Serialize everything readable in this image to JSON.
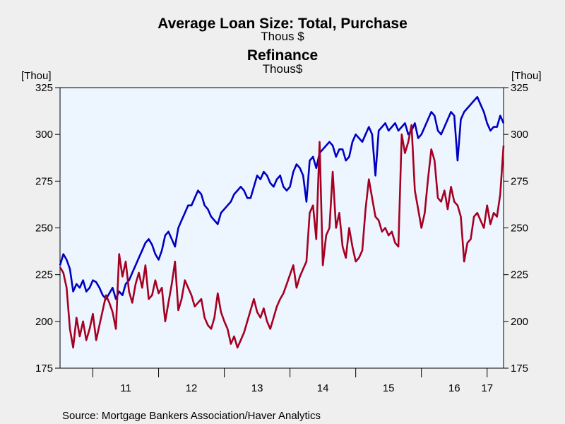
{
  "colors": {
    "purchase": "#0000c0",
    "refinance": "#a50021",
    "plot_bg": "#edf5ff",
    "page_bg": "#efefef"
  },
  "chart_data": {
    "type": "line",
    "title": "Average Loan Size: Total, Purchase",
    "title_unit": "Thous $",
    "title2": "Refinance",
    "title2_unit": "Thous$",
    "left_unit": "[Thou]",
    "right_unit": "[Thou]",
    "ylim": [
      175,
      325
    ],
    "yticks": [
      175,
      200,
      225,
      250,
      275,
      300,
      325
    ],
    "xlim": [
      2010.5,
      2017.25
    ],
    "xtick_labels": [
      {
        "label": "11",
        "x": 2011.5
      },
      {
        "label": "12",
        "x": 2012.5
      },
      {
        "label": "13",
        "x": 2013.5
      },
      {
        "label": "14",
        "x": 2014.5
      },
      {
        "label": "15",
        "x": 2015.5
      },
      {
        "label": "16",
        "x": 2016.5
      },
      {
        "label": "17",
        "x": 2017.0
      }
    ],
    "year_boundaries": [
      2011,
      2012,
      2013,
      2014,
      2015,
      2016,
      2017
    ],
    "grid": false,
    "source": "Source:  Mortgage Bankers Association/Haver Analytics",
    "series": [
      {
        "key": "purchase",
        "x": [
          2010.5,
          2010.55,
          2010.6,
          2010.65,
          2010.7,
          2010.75,
          2010.8,
          2010.85,
          2010.9,
          2010.95,
          2011.0,
          2011.05,
          2011.1,
          2011.15,
          2011.2,
          2011.25,
          2011.3,
          2011.35,
          2011.4,
          2011.45,
          2011.5,
          2011.55,
          2011.6,
          2011.65,
          2011.7,
          2011.75,
          2011.8,
          2011.85,
          2011.9,
          2011.95,
          2012.0,
          2012.05,
          2012.1,
          2012.15,
          2012.2,
          2012.25,
          2012.3,
          2012.35,
          2012.4,
          2012.45,
          2012.5,
          2012.55,
          2012.6,
          2012.65,
          2012.7,
          2012.75,
          2012.8,
          2012.85,
          2012.9,
          2012.95,
          2013.0,
          2013.05,
          2013.1,
          2013.15,
          2013.2,
          2013.25,
          2013.3,
          2013.35,
          2013.4,
          2013.45,
          2013.5,
          2013.55,
          2013.6,
          2013.65,
          2013.7,
          2013.75,
          2013.8,
          2013.85,
          2013.9,
          2013.95,
          2014.0,
          2014.05,
          2014.1,
          2014.15,
          2014.2,
          2014.25,
          2014.3,
          2014.35,
          2014.4,
          2014.45,
          2014.5,
          2014.55,
          2014.6,
          2014.65,
          2014.7,
          2014.75,
          2014.8,
          2014.85,
          2014.9,
          2014.95,
          2015.0,
          2015.05,
          2015.1,
          2015.15,
          2015.2,
          2015.25,
          2015.3,
          2015.35,
          2015.4,
          2015.45,
          2015.5,
          2015.55,
          2015.6,
          2015.65,
          2015.7,
          2015.75,
          2015.8,
          2015.85,
          2015.9,
          2015.95,
          2016.0,
          2016.05,
          2016.1,
          2016.15,
          2016.2,
          2016.25,
          2016.3,
          2016.35,
          2016.4,
          2016.45,
          2016.5,
          2016.55,
          2016.6,
          2016.65,
          2016.7,
          2016.75,
          2016.8,
          2016.85,
          2016.9,
          2016.95,
          2017.0,
          2017.05,
          2017.1,
          2017.15,
          2017.2,
          2017.25
        ],
        "values": [
          230,
          236,
          233,
          228,
          216,
          220,
          218,
          222,
          216,
          218,
          222,
          221,
          218,
          214,
          212,
          215,
          218,
          212,
          216,
          214,
          220,
          222,
          226,
          230,
          234,
          238,
          242,
          244,
          241,
          236,
          233,
          238,
          246,
          248,
          244,
          240,
          250,
          254,
          258,
          262,
          262,
          266,
          270,
          268,
          262,
          260,
          256,
          254,
          252,
          258,
          260,
          262,
          264,
          268,
          270,
          272,
          270,
          266,
          266,
          272,
          278,
          276,
          280,
          278,
          274,
          272,
          276,
          278,
          272,
          270,
          272,
          280,
          284,
          282,
          278,
          264,
          286,
          288,
          282,
          290,
          292,
          294,
          296,
          294,
          288,
          292,
          292,
          286,
          288,
          296,
          300,
          298,
          296,
          300,
          304,
          300,
          278,
          302,
          304,
          306,
          302,
          304,
          306,
          302,
          304,
          306,
          300,
          302,
          306,
          298,
          300,
          304,
          308,
          312,
          310,
          302,
          300,
          304,
          308,
          312,
          310,
          286,
          308,
          312,
          314,
          316,
          318,
          320,
          316,
          312,
          306,
          302,
          304,
          304,
          310,
          306
        ]
      },
      {
        "key": "refinance",
        "x": [
          2010.5,
          2010.55,
          2010.6,
          2010.65,
          2010.7,
          2010.75,
          2010.8,
          2010.85,
          2010.9,
          2010.95,
          2011.0,
          2011.05,
          2011.1,
          2011.15,
          2011.2,
          2011.25,
          2011.3,
          2011.35,
          2011.4,
          2011.45,
          2011.5,
          2011.55,
          2011.6,
          2011.65,
          2011.7,
          2011.75,
          2011.8,
          2011.85,
          2011.9,
          2011.95,
          2012.0,
          2012.05,
          2012.1,
          2012.15,
          2012.2,
          2012.25,
          2012.3,
          2012.35,
          2012.4,
          2012.45,
          2012.5,
          2012.55,
          2012.6,
          2012.65,
          2012.7,
          2012.75,
          2012.8,
          2012.85,
          2012.9,
          2012.95,
          2013.0,
          2013.05,
          2013.1,
          2013.15,
          2013.2,
          2013.25,
          2013.3,
          2013.35,
          2013.4,
          2013.45,
          2013.5,
          2013.55,
          2013.6,
          2013.65,
          2013.7,
          2013.75,
          2013.8,
          2013.85,
          2013.9,
          2013.95,
          2014.0,
          2014.05,
          2014.1,
          2014.15,
          2014.2,
          2014.25,
          2014.3,
          2014.35,
          2014.4,
          2014.45,
          2014.5,
          2014.55,
          2014.6,
          2014.65,
          2014.7,
          2014.75,
          2014.8,
          2014.85,
          2014.9,
          2014.95,
          2015.0,
          2015.05,
          2015.1,
          2015.15,
          2015.2,
          2015.25,
          2015.3,
          2015.35,
          2015.4,
          2015.45,
          2015.5,
          2015.55,
          2015.6,
          2015.65,
          2015.7,
          2015.75,
          2015.8,
          2015.85,
          2015.9,
          2015.95,
          2016.0,
          2016.05,
          2016.1,
          2016.15,
          2016.2,
          2016.25,
          2016.3,
          2016.35,
          2016.4,
          2016.45,
          2016.5,
          2016.55,
          2016.6,
          2016.65,
          2016.7,
          2016.75,
          2016.8,
          2016.85,
          2016.9,
          2016.95,
          2017.0,
          2017.05,
          2017.1,
          2017.15,
          2017.2,
          2017.25
        ],
        "values": [
          229,
          226,
          218,
          196,
          186,
          202,
          192,
          200,
          190,
          196,
          204,
          190,
          198,
          206,
          214,
          210,
          205,
          196,
          236,
          224,
          232,
          216,
          210,
          220,
          226,
          218,
          230,
          212,
          214,
          222,
          215,
          218,
          200,
          210,
          220,
          232,
          206,
          212,
          222,
          218,
          214,
          208,
          210,
          212,
          202,
          198,
          196,
          202,
          215,
          205,
          200,
          196,
          188,
          192,
          186,
          190,
          194,
          200,
          206,
          212,
          205,
          202,
          207,
          200,
          196,
          202,
          208,
          212,
          215,
          220,
          225,
          230,
          218,
          224,
          228,
          232,
          258,
          262,
          244,
          296,
          230,
          246,
          250,
          280,
          250,
          258,
          240,
          234,
          250,
          240,
          232,
          234,
          238,
          260,
          276,
          266,
          256,
          254,
          248,
          250,
          246,
          248,
          242,
          240,
          300,
          290,
          296,
          305,
          270,
          260,
          250,
          258,
          276,
          292,
          286,
          266,
          264,
          270,
          260,
          272,
          264,
          262,
          256,
          232,
          242,
          244,
          256,
          258,
          254,
          250,
          262,
          252,
          258,
          256,
          268,
          294
        ]
      }
    ]
  }
}
